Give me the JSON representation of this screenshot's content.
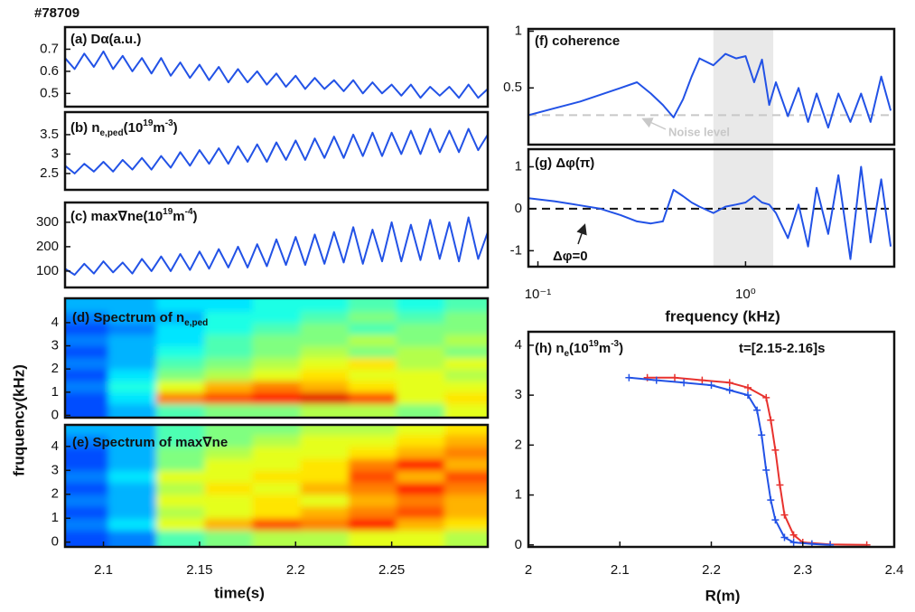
{
  "figure": {
    "label": "#78709"
  },
  "chart_data": [
    {
      "type": "line",
      "title": "(a) Dα(a.u.)",
      "color": "#2252e6",
      "x": [
        2.08,
        2.085,
        2.09,
        2.095,
        2.1,
        2.105,
        2.11,
        2.115,
        2.12,
        2.125,
        2.13,
        2.135,
        2.14,
        2.145,
        2.15,
        2.155,
        2.16,
        2.165,
        2.17,
        2.175,
        2.18,
        2.185,
        2.19,
        2.195,
        2.2,
        2.205,
        2.21,
        2.215,
        2.22,
        2.225,
        2.23,
        2.235,
        2.24,
        2.245,
        2.25,
        2.255,
        2.26,
        2.265,
        2.27,
        2.275,
        2.28,
        2.285,
        2.29,
        2.295,
        2.3
      ],
      "values": [
        0.66,
        0.61,
        0.68,
        0.62,
        0.69,
        0.61,
        0.67,
        0.6,
        0.66,
        0.59,
        0.66,
        0.58,
        0.64,
        0.57,
        0.63,
        0.56,
        0.62,
        0.55,
        0.61,
        0.55,
        0.6,
        0.54,
        0.59,
        0.53,
        0.58,
        0.52,
        0.57,
        0.52,
        0.56,
        0.51,
        0.56,
        0.5,
        0.55,
        0.5,
        0.54,
        0.49,
        0.54,
        0.48,
        0.53,
        0.49,
        0.53,
        0.48,
        0.54,
        0.48,
        0.52
      ],
      "xlim": [
        2.08,
        2.3
      ],
      "ylim": [
        0.44,
        0.8
      ],
      "yticks": [
        0.5,
        0.6,
        0.7
      ]
    },
    {
      "type": "line",
      "title": [
        "(b) n",
        "e,ped",
        "(10",
        "19",
        "m",
        "-3",
        ")"
      ],
      "color": "#2252e6",
      "x": [
        2.08,
        2.085,
        2.09,
        2.095,
        2.1,
        2.105,
        2.11,
        2.115,
        2.12,
        2.125,
        2.13,
        2.135,
        2.14,
        2.145,
        2.15,
        2.155,
        2.16,
        2.165,
        2.17,
        2.175,
        2.18,
        2.185,
        2.19,
        2.195,
        2.2,
        2.205,
        2.21,
        2.215,
        2.22,
        2.225,
        2.23,
        2.235,
        2.24,
        2.245,
        2.25,
        2.255,
        2.26,
        2.265,
        2.27,
        2.275,
        2.28,
        2.285,
        2.29,
        2.295,
        2.3
      ],
      "values": [
        2.7,
        2.5,
        2.75,
        2.55,
        2.8,
        2.55,
        2.85,
        2.6,
        2.9,
        2.6,
        2.95,
        2.65,
        3.05,
        2.7,
        3.1,
        2.75,
        3.15,
        2.75,
        3.2,
        2.8,
        3.25,
        2.8,
        3.3,
        2.85,
        3.35,
        2.85,
        3.4,
        2.9,
        3.45,
        2.9,
        3.5,
        2.95,
        3.55,
        2.95,
        3.55,
        3.0,
        3.6,
        3.0,
        3.65,
        3.05,
        3.6,
        3.05,
        3.65,
        3.1,
        3.5
      ],
      "xlim": [
        2.08,
        2.3
      ],
      "ylim": [
        2.08,
        4.08
      ],
      "yticks": [
        2.5,
        3,
        3.5
      ]
    },
    {
      "type": "line",
      "title": [
        "(c) max∇ne(10",
        "19",
        "m",
        "-4",
        ")"
      ],
      "color": "#2252e6",
      "x": [
        2.08,
        2.085,
        2.09,
        2.095,
        2.1,
        2.105,
        2.11,
        2.115,
        2.12,
        2.125,
        2.13,
        2.135,
        2.14,
        2.145,
        2.15,
        2.155,
        2.16,
        2.165,
        2.17,
        2.175,
        2.18,
        2.185,
        2.19,
        2.195,
        2.2,
        2.205,
        2.21,
        2.215,
        2.22,
        2.225,
        2.23,
        2.235,
        2.24,
        2.245,
        2.25,
        2.255,
        2.26,
        2.265,
        2.27,
        2.275,
        2.28,
        2.285,
        2.29,
        2.295,
        2.3
      ],
      "values": [
        110,
        85,
        130,
        90,
        140,
        95,
        135,
        90,
        150,
        100,
        160,
        100,
        170,
        105,
        180,
        110,
        190,
        115,
        200,
        115,
        210,
        120,
        230,
        125,
        240,
        125,
        250,
        130,
        260,
        135,
        280,
        130,
        270,
        140,
        300,
        140,
        290,
        145,
        310,
        150,
        300,
        140,
        320,
        150,
        260
      ],
      "xlim": [
        2.08,
        2.3
      ],
      "ylim": [
        33,
        381
      ],
      "yticks": [
        100,
        200,
        300
      ]
    },
    {
      "type": "heatmap",
      "title": [
        "(d) Spectrum of n",
        "e,ped"
      ],
      "ylabel": "fruquency(kHz)",
      "colormap": "jet",
      "zlim": [
        0,
        1
      ],
      "x": [
        2.09,
        2.115,
        2.14,
        2.165,
        2.19,
        2.215,
        2.24,
        2.265,
        2.29
      ],
      "y": [
        0.25,
        0.75,
        1.25,
        1.75,
        2.25,
        2.75,
        3.25,
        3.75,
        4.25,
        4.75
      ],
      "z": [
        [
          0.2,
          0.3,
          0.45,
          0.5,
          0.5,
          0.55,
          0.55,
          0.5,
          0.6
        ],
        [
          0.2,
          0.35,
          0.75,
          0.8,
          0.85,
          0.9,
          0.8,
          0.6,
          0.65
        ],
        [
          0.25,
          0.4,
          0.6,
          0.7,
          0.75,
          0.7,
          0.65,
          0.6,
          0.6
        ],
        [
          0.2,
          0.35,
          0.5,
          0.55,
          0.6,
          0.65,
          0.6,
          0.6,
          0.55
        ],
        [
          0.25,
          0.3,
          0.45,
          0.5,
          0.55,
          0.6,
          0.65,
          0.55,
          0.6
        ],
        [
          0.2,
          0.3,
          0.4,
          0.45,
          0.5,
          0.55,
          0.5,
          0.55,
          0.5
        ],
        [
          0.25,
          0.3,
          0.35,
          0.45,
          0.5,
          0.5,
          0.55,
          0.5,
          0.55
        ],
        [
          0.2,
          0.25,
          0.35,
          0.4,
          0.45,
          0.5,
          0.45,
          0.5,
          0.5
        ],
        [
          0.25,
          0.3,
          0.3,
          0.4,
          0.4,
          0.45,
          0.5,
          0.45,
          0.5
        ],
        [
          0.3,
          0.3,
          0.35,
          0.35,
          0.4,
          0.4,
          0.45,
          0.4,
          0.45
        ]
      ],
      "xlim": [
        2.08,
        2.3
      ],
      "ylim": [
        -0.1,
        5.05
      ],
      "yticks": [
        0,
        1,
        2,
        3,
        4
      ]
    },
    {
      "type": "heatmap",
      "title": "(e) Spectrum of max∇ne",
      "xlabel": "time(s)",
      "colormap": "jet",
      "zlim": [
        0,
        1
      ],
      "x": [
        2.09,
        2.115,
        2.14,
        2.165,
        2.19,
        2.215,
        2.24,
        2.265,
        2.29
      ],
      "y": [
        0.25,
        0.75,
        1.25,
        1.75,
        2.25,
        2.75,
        3.25,
        3.75,
        4.25,
        4.75
      ],
      "z": [
        [
          0.2,
          0.25,
          0.45,
          0.5,
          0.55,
          0.55,
          0.6,
          0.6,
          0.55
        ],
        [
          0.25,
          0.35,
          0.6,
          0.7,
          0.8,
          0.75,
          0.85,
          0.7,
          0.65
        ],
        [
          0.2,
          0.3,
          0.55,
          0.6,
          0.65,
          0.7,
          0.75,
          0.8,
          0.7
        ],
        [
          0.25,
          0.3,
          0.6,
          0.6,
          0.65,
          0.6,
          0.7,
          0.75,
          0.7
        ],
        [
          0.2,
          0.3,
          0.55,
          0.65,
          0.6,
          0.7,
          0.75,
          0.85,
          0.75
        ],
        [
          0.25,
          0.35,
          0.6,
          0.6,
          0.65,
          0.65,
          0.8,
          0.7,
          0.8
        ],
        [
          0.2,
          0.3,
          0.5,
          0.6,
          0.6,
          0.65,
          0.75,
          0.85,
          0.7
        ],
        [
          0.2,
          0.3,
          0.5,
          0.55,
          0.6,
          0.6,
          0.65,
          0.7,
          0.75
        ],
        [
          0.25,
          0.3,
          0.45,
          0.5,
          0.55,
          0.6,
          0.6,
          0.65,
          0.7
        ],
        [
          0.3,
          0.3,
          0.45,
          0.5,
          0.5,
          0.55,
          0.55,
          0.6,
          0.65
        ]
      ],
      "xlim": [
        2.08,
        2.3
      ],
      "ylim": [
        -0.2,
        4.9
      ],
      "yticks": [
        0,
        1,
        2,
        3,
        4
      ],
      "xticks": [
        2.1,
        2.15,
        2.2,
        2.25
      ]
    },
    {
      "type": "line",
      "title": "(f) coherence",
      "color": "#2252e6",
      "xscale": "log",
      "highlight": [
        0.7,
        1.36
      ],
      "reference_lines": [
        {
          "value": 0.26,
          "color": "#c8c8c8",
          "label": "Noise level"
        }
      ],
      "x": [
        0.09,
        0.12,
        0.16,
        0.2,
        0.25,
        0.3,
        0.35,
        0.4,
        0.45,
        0.5,
        0.55,
        0.6,
        0.7,
        0.8,
        0.9,
        1.0,
        1.1,
        1.2,
        1.3,
        1.4,
        1.6,
        1.8,
        2.0,
        2.2,
        2.5,
        2.8,
        3.2,
        3.6,
        4.0,
        4.5,
        5.0
      ],
      "values": [
        0.26,
        0.32,
        0.38,
        0.44,
        0.5,
        0.55,
        0.45,
        0.35,
        0.24,
        0.4,
        0.6,
        0.76,
        0.7,
        0.8,
        0.76,
        0.78,
        0.55,
        0.75,
        0.35,
        0.55,
        0.25,
        0.5,
        0.2,
        0.45,
        0.15,
        0.45,
        0.2,
        0.45,
        0.2,
        0.6,
        0.3
      ],
      "xlim": [
        0.09,
        5.2
      ],
      "ylim": [
        0,
        1.02
      ],
      "yticks": [
        0.5,
        1
      ]
    },
    {
      "type": "line",
      "title": "(g) Δφ(π)",
      "color": "#2252e6",
      "xscale": "log",
      "highlight": [
        0.7,
        1.36
      ],
      "xlabel": "frequency (kHz)",
      "annotation": "Δφ=0",
      "reference_lines": [
        {
          "value": 0,
          "color": "#111111"
        }
      ],
      "x": [
        0.09,
        0.12,
        0.16,
        0.2,
        0.25,
        0.3,
        0.35,
        0.4,
        0.45,
        0.5,
        0.55,
        0.6,
        0.7,
        0.8,
        0.9,
        1.0,
        1.1,
        1.2,
        1.3,
        1.4,
        1.6,
        1.8,
        2.0,
        2.2,
        2.5,
        2.8,
        3.2,
        3.6,
        4.0,
        4.5,
        5.0
      ],
      "values": [
        0.25,
        0.18,
        0.08,
        0.0,
        -0.15,
        -0.3,
        -0.35,
        -0.3,
        0.45,
        0.3,
        0.15,
        0.05,
        -0.1,
        0.05,
        0.1,
        0.15,
        0.3,
        0.15,
        0.1,
        -0.1,
        -0.7,
        0.1,
        -0.9,
        0.5,
        -0.6,
        0.8,
        -1.2,
        1.0,
        -0.8,
        0.7,
        -0.9
      ],
      "xlim": [
        0.09,
        5.2
      ],
      "ylim": [
        -1.38,
        1.42
      ],
      "yticks": [
        -1,
        0,
        1
      ],
      "xticks": [
        {
          "value": 0.1,
          "label": "10⁻¹"
        },
        {
          "value": 1,
          "label": "10⁰"
        }
      ]
    },
    {
      "type": "line",
      "title": [
        "(h) n",
        "e",
        "(10",
        "19",
        "m",
        "-3",
        ")"
      ],
      "subtitle": "t=[2.15-2.16]s",
      "xlabel": "R(m)",
      "marker": "+",
      "series": [
        {
          "color": "#e8322e",
          "x": [
            2.13,
            2.16,
            2.19,
            2.22,
            2.24,
            2.26,
            2.265,
            2.27,
            2.275,
            2.28,
            2.29,
            2.3,
            2.33,
            2.37
          ],
          "values": [
            3.35,
            3.35,
            3.3,
            3.25,
            3.15,
            2.95,
            2.5,
            1.9,
            1.2,
            0.6,
            0.2,
            0.05,
            0.01,
            0
          ]
        },
        {
          "color": "#2252e6",
          "x": [
            2.11,
            2.14,
            2.17,
            2.2,
            2.22,
            2.24,
            2.25,
            2.255,
            2.26,
            2.265,
            2.27,
            2.28,
            2.29,
            2.31,
            2.33
          ],
          "values": [
            3.35,
            3.3,
            3.25,
            3.2,
            3.1,
            3.0,
            2.7,
            2.2,
            1.5,
            0.9,
            0.5,
            0.15,
            0.05,
            0.02,
            0
          ]
        }
      ],
      "xlim": [
        2,
        2.4
      ],
      "ylim": [
        -0.04,
        4.27
      ],
      "xticks": [
        2,
        2.1,
        2.2,
        2.3,
        2.4
      ],
      "yticks": [
        0,
        1,
        2,
        3,
        4
      ]
    }
  ]
}
